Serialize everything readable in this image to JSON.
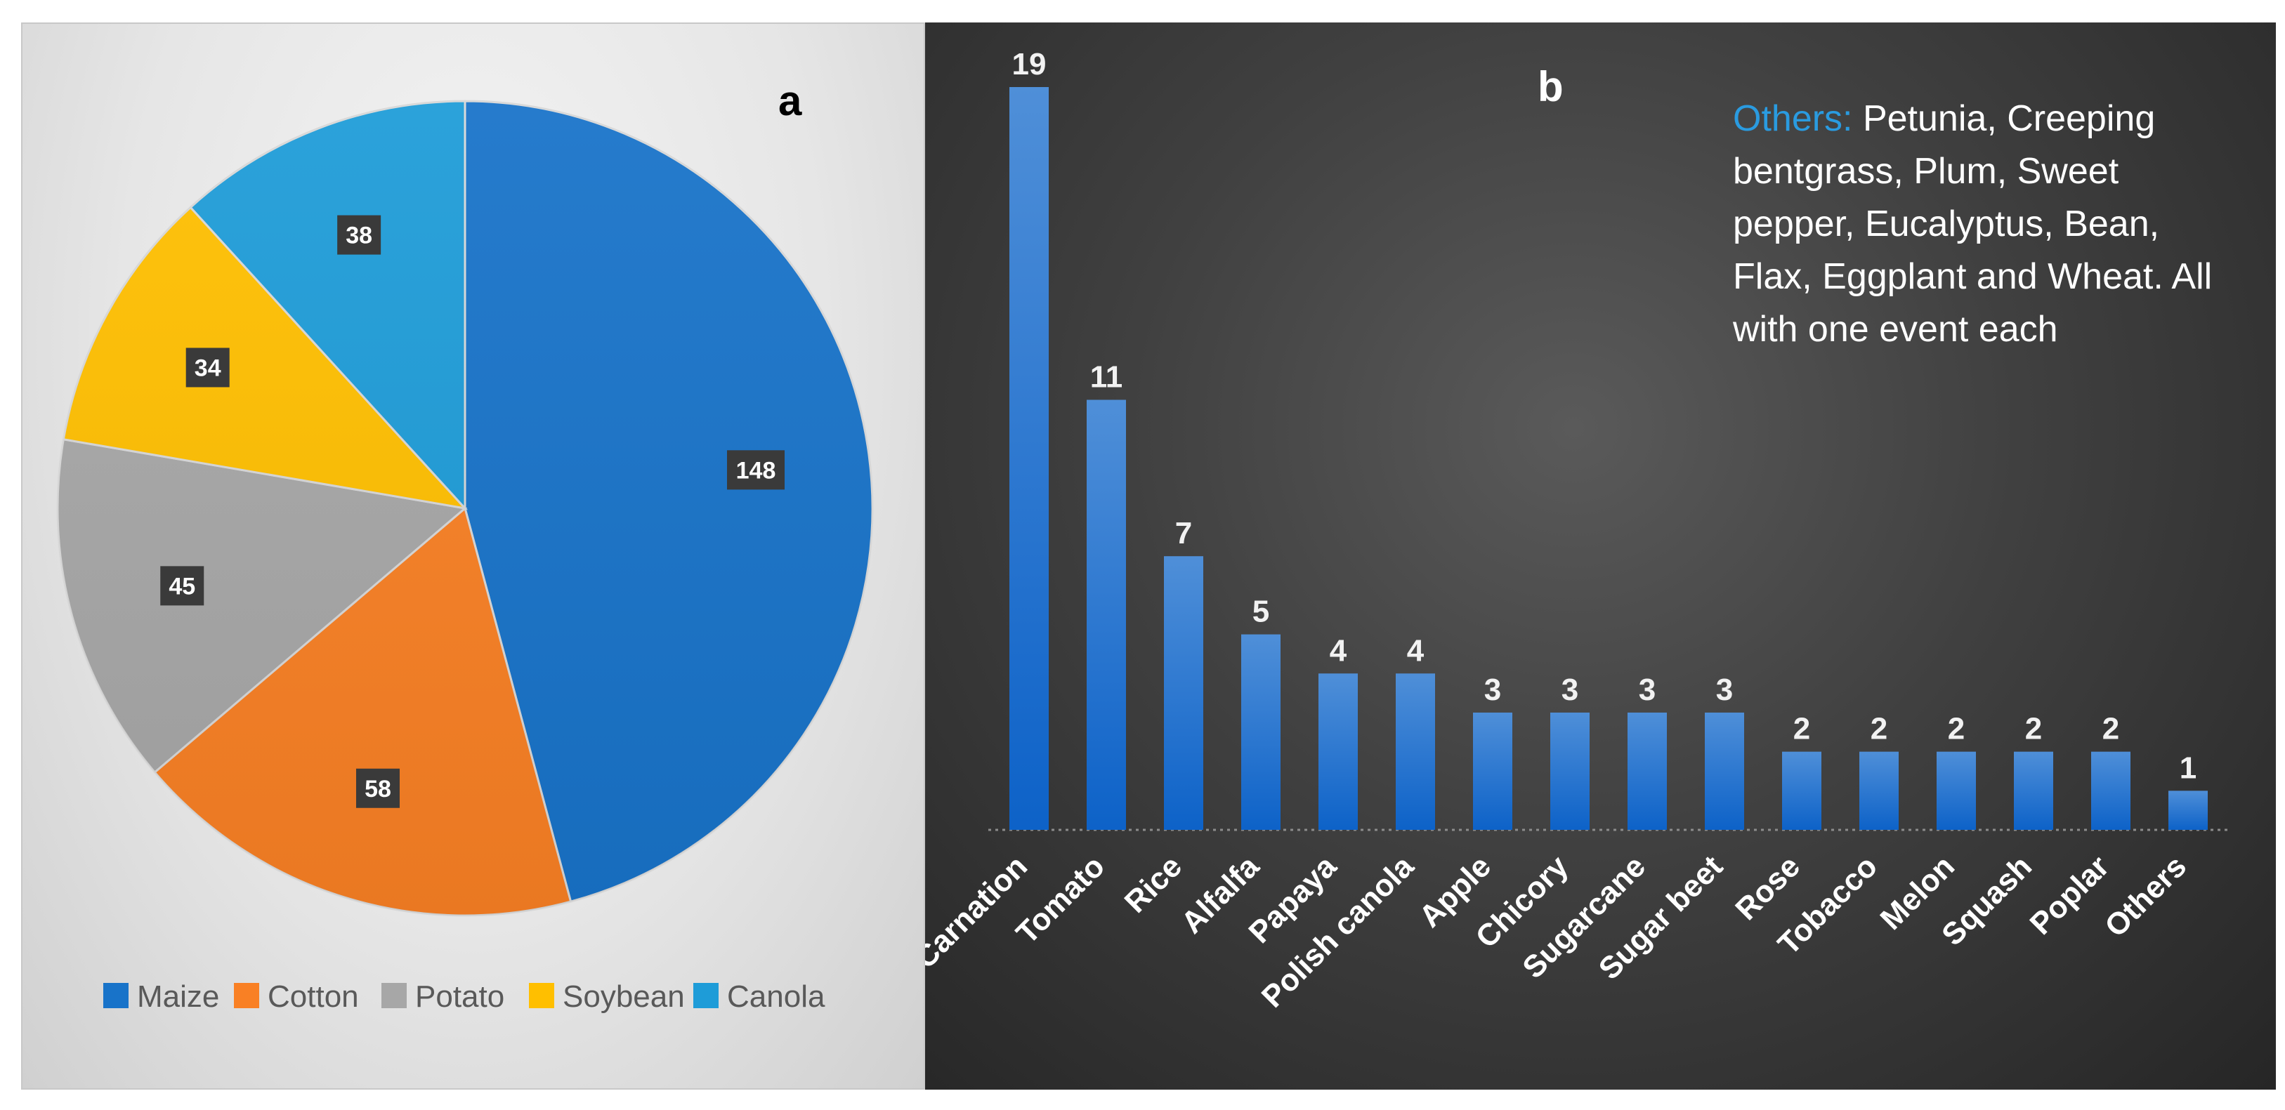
{
  "chart_data": [
    {
      "type": "pie",
      "panel_label": "a",
      "categories": [
        "Maize",
        "Cotton",
        "Potato",
        "Soybean",
        "Canola"
      ],
      "values": [
        148,
        58,
        45,
        34,
        38
      ],
      "colors": [
        "#1873C9",
        "#F98024",
        "#A7A7A7",
        "#FFBF00",
        "#1E9CD8"
      ],
      "legend_position": "bottom",
      "data_labels": true
    },
    {
      "type": "bar",
      "panel_label": "b",
      "categories": [
        "Carnation",
        "Tomato",
        "Rice",
        "Alfalfa",
        "Papaya",
        "Polish canola",
        "Apple",
        "Chicory",
        "Sugarcane",
        "Sugar beet",
        "Rose",
        "Tobacco",
        "Melon",
        "Squash",
        "Poplar",
        "Others"
      ],
      "values": [
        19,
        11,
        7,
        5,
        4,
        4,
        3,
        3,
        3,
        3,
        2,
        2,
        2,
        2,
        2,
        1
      ],
      "bar_color": "#1873C9",
      "ylim": [
        0,
        19
      ],
      "grid": false,
      "data_labels": true,
      "annotation": {
        "heading": "Others:",
        "text": "Petunia, Creeping bentgrass, Plum, Sweet pepper, Eucalyptus, Bean, Flax, Eggplant and Wheat. All with one event each"
      }
    }
  ]
}
